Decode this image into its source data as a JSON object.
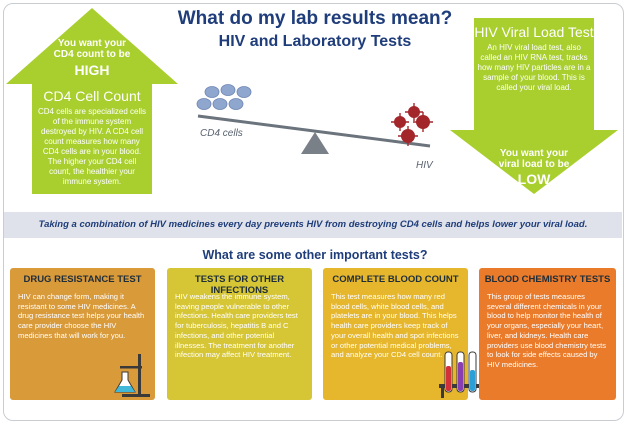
{
  "header": {
    "title": "What do my lab results mean?",
    "subtitle": "HIV and Laboratory Tests"
  },
  "cd4": {
    "want_line1": "You want your",
    "want_line2": "CD4 count to be",
    "level": "HIGH",
    "title": "CD4 Cell Count",
    "body": "CD4 cells are specialized cells of the immune system destroyed by HIV. A CD4 cell count measures how many CD4 cells are in your blood. The higher your CD4 cell count, the healthier your immune system.",
    "arrow_color": "#a9cf2e"
  },
  "viral": {
    "title": "HIV Viral Load Test",
    "body": "An HIV viral load test, also called an HIV RNA test, tracks how many HIV particles are in a sample of your blood. This is called your viral load.",
    "want_line1": "You want your",
    "want_line2": "viral load to be",
    "level": "LOW",
    "arrow_color": "#a9cf2e"
  },
  "scale": {
    "left_label": "CD4 cells",
    "right_label": "HIV"
  },
  "band": {
    "text": "Taking a combination of HIV medicines every day prevents HIV from destroying CD4 cells and helps lower your viral load."
  },
  "other": {
    "heading": "What are some other important tests?",
    "cards": [
      {
        "title": "DRUG RESISTANCE TEST",
        "body": "HIV can change form, making it resistant to some HIV medicines. A drug resistance test helps your health care provider choose the HIV medicines that will work for you.",
        "color": "#d99a3a"
      },
      {
        "title": "TESTS FOR OTHER INFECTIONS",
        "body": "HIV weakens the immune system, leaving people vulnerable to other infections. Health care providers test for tuberculosis, hepatitis B and C infections, and other potential illnesses. The treatment for another infection may affect HIV treatment.",
        "color": "#d6c636"
      },
      {
        "title": "COMPLETE BLOOD COUNT",
        "body": "This test measures how many red blood cells, white blood cells, and platelets are in your blood. This helps health care providers keep track of your overall health and spot infections or other potential medical problems, and analyze your CD4 cell count.",
        "color": "#e6b72c"
      },
      {
        "title": "BLOOD CHEMISTRY TESTS",
        "body": "This group of tests measures several different chemicals in your blood to help monitor the health of your organs, especially your heart, liver, and kidneys. Health care providers use blood chemistry tests to look for side effects caused by HIV medicines.",
        "color": "#ea7b2a"
      }
    ]
  }
}
